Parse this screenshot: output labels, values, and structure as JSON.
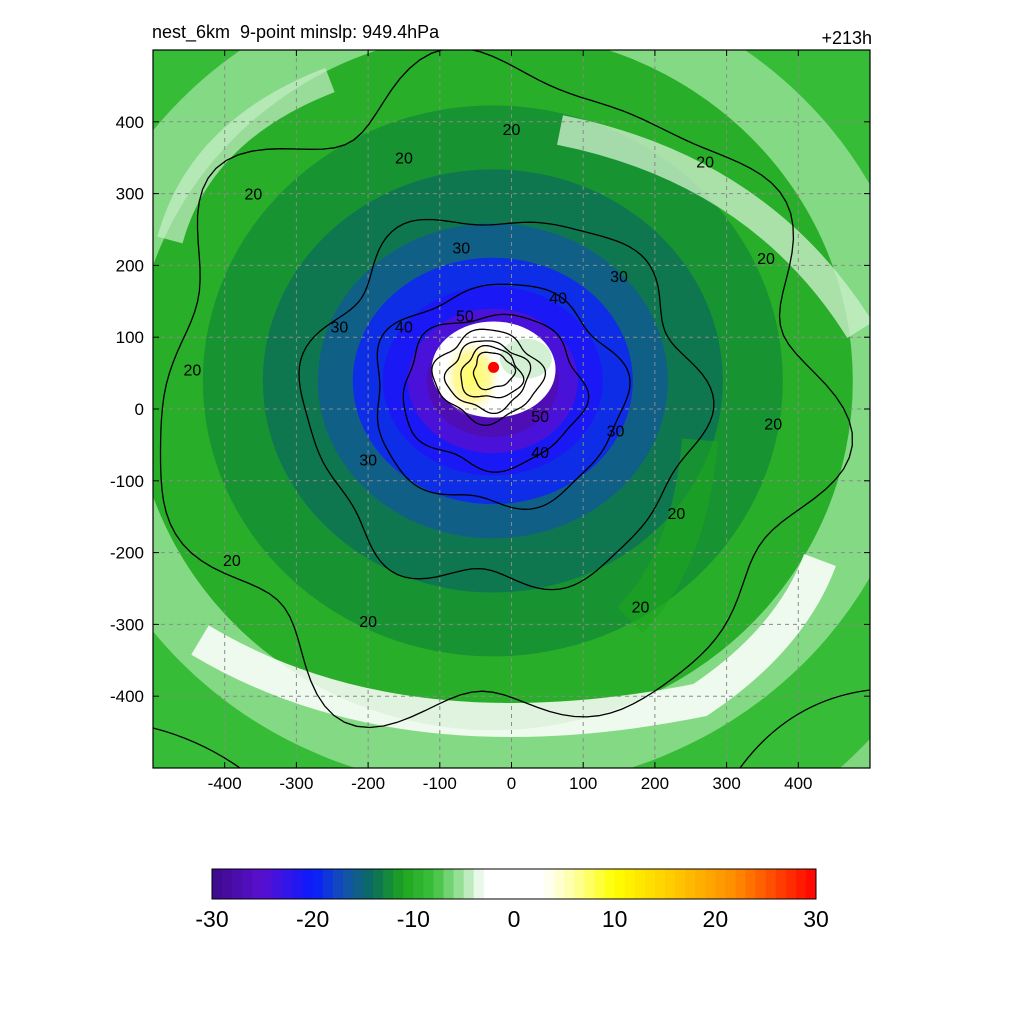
{
  "title": {
    "left": "nest_6km  9-point minslp: 949.4hPa",
    "right": "+213h"
  },
  "chart_data": {
    "type": "heatmap",
    "title": "nest_6km  9-point minslp: 949.4hPa",
    "forecast_hour_label": "+213h",
    "xlabel": "",
    "ylabel": "",
    "xlim": [
      -500,
      500
    ],
    "ylim": [
      -500,
      500
    ],
    "x_ticks": [
      -400,
      -300,
      -200,
      -100,
      0,
      100,
      200,
      300,
      400
    ],
    "y_ticks": [
      -400,
      -300,
      -200,
      -100,
      0,
      100,
      200,
      300,
      400
    ],
    "grid": true,
    "fill_field": {
      "colorbar_range": [
        -30,
        30
      ],
      "colorbar_ticks": [
        -30,
        -20,
        -10,
        0,
        10,
        20,
        30
      ],
      "colormap_stops": [
        {
          "value": -30,
          "color": "#3d0a8c"
        },
        {
          "value": -25,
          "color": "#5a0fd0"
        },
        {
          "value": -20,
          "color": "#0a1bff"
        },
        {
          "value": -17,
          "color": "#1450b4"
        },
        {
          "value": -14,
          "color": "#0b6e5a"
        },
        {
          "value": -11,
          "color": "#1ea51e"
        },
        {
          "value": -8,
          "color": "#3cc03c"
        },
        {
          "value": -5,
          "color": "#a8e6a8"
        },
        {
          "value": -3,
          "color": "#ffffff"
        },
        {
          "value": 3,
          "color": "#ffffff"
        },
        {
          "value": 6,
          "color": "#ffffa0"
        },
        {
          "value": 10,
          "color": "#ffff00"
        },
        {
          "value": 16,
          "color": "#ffc800"
        },
        {
          "value": 22,
          "color": "#ff8c00"
        },
        {
          "value": 30,
          "color": "#ff0000"
        }
      ]
    },
    "contour_levels": [
      20,
      30,
      40,
      50
    ],
    "contour_labels": [
      {
        "text": "20",
        "x": 0,
        "y": 390
      },
      {
        "text": "20",
        "x": -150,
        "y": 350
      },
      {
        "text": "20",
        "x": -360,
        "y": 300
      },
      {
        "text": "20",
        "x": 270,
        "y": 345
      },
      {
        "text": "20",
        "x": 355,
        "y": 210
      },
      {
        "text": "20",
        "x": -445,
        "y": 55
      },
      {
        "text": "20",
        "x": 365,
        "y": -20
      },
      {
        "text": "20",
        "x": 230,
        "y": -145
      },
      {
        "text": "20",
        "x": -390,
        "y": -210
      },
      {
        "text": "20",
        "x": -200,
        "y": -295
      },
      {
        "text": "20",
        "x": 180,
        "y": -275
      },
      {
        "text": "30",
        "x": -70,
        "y": 225
      },
      {
        "text": "30",
        "x": 150,
        "y": 185
      },
      {
        "text": "30",
        "x": -240,
        "y": 115
      },
      {
        "text": "30",
        "x": 145,
        "y": -30
      },
      {
        "text": "30",
        "x": -200,
        "y": -70
      },
      {
        "text": "40",
        "x": 65,
        "y": 155
      },
      {
        "text": "40",
        "x": -150,
        "y": 115
      },
      {
        "text": "40",
        "x": 40,
        "y": -60
      },
      {
        "text": "50",
        "x": -65,
        "y": 130
      },
      {
        "text": "50",
        "x": 40,
        "y": -10
      }
    ],
    "center_marker": {
      "x": -25,
      "y": 58,
      "color": "#ff0000"
    }
  }
}
